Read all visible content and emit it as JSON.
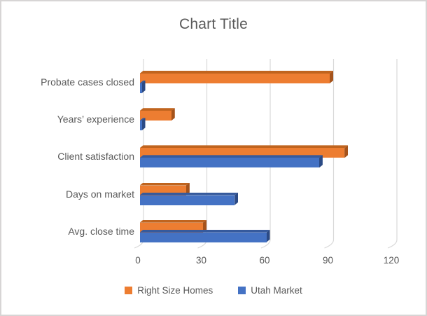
{
  "chart_data": {
    "type": "bar",
    "orientation": "horizontal",
    "style": "3d-clustered",
    "title": "Chart Title",
    "categories": [
      "Probate cases closed",
      "Years’ experience",
      "Client satisfaction",
      "Days on market",
      "Avg. close time"
    ],
    "series": [
      {
        "name": "Right Size Homes",
        "color": "#ED7D31",
        "color_top": "#C0641E",
        "color_side": "#A5531B",
        "values": [
          90,
          15,
          97,
          22,
          30
        ]
      },
      {
        "name": "Utah Market",
        "color": "#4472C4",
        "color_top": "#365A9D",
        "color_side": "#2B4A85",
        "values": [
          1,
          1,
          85,
          45,
          60
        ]
      }
    ],
    "x_ticks": [
      "0",
      "30",
      "60",
      "90",
      "120"
    ],
    "x_tick_values": [
      0,
      30,
      60,
      90,
      120
    ],
    "xlim": [
      0,
      120
    ],
    "gridlines": true,
    "legend_position": "bottom",
    "colors": {
      "gridline": "#D9D9D9",
      "axis_text": "#595959",
      "title_text": "#595959",
      "chart_border": "#D7D5D5",
      "background": "#FFFFFF"
    }
  }
}
